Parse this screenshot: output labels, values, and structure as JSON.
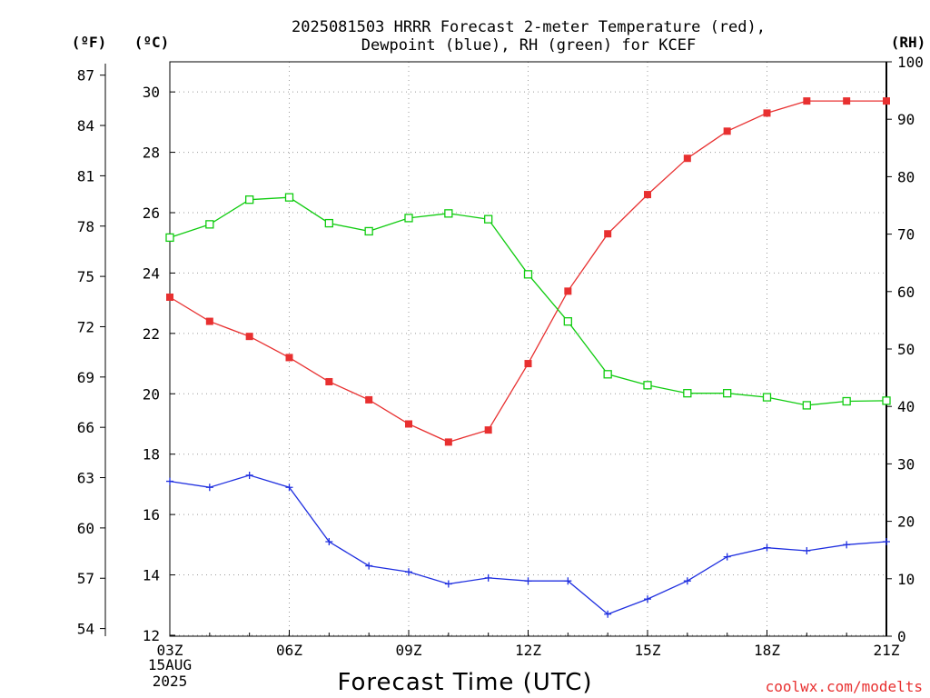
{
  "chart_data": {
    "type": "line",
    "title_line1": "2025081503 HRRR Forecast 2-meter Temperature (red),",
    "title_line2": "Dewpoint (blue), RH (green) for KCEF",
    "xlabel": "Forecast Time (UTC)",
    "date_label_line1": "15AUG",
    "date_label_line2": "2025",
    "credit": "coolwx.com/modelts",
    "units": {
      "fahrenheit": "(ºF)",
      "celsius": "(ºC)",
      "rh": "(RH)"
    },
    "x": [
      "03Z",
      "04Z",
      "05Z",
      "06Z",
      "07Z",
      "08Z",
      "09Z",
      "10Z",
      "11Z",
      "12Z",
      "13Z",
      "14Z",
      "15Z",
      "16Z",
      "17Z",
      "18Z",
      "19Z",
      "20Z",
      "21Z"
    ],
    "x_tick_labels": [
      "03Z",
      "06Z",
      "09Z",
      "12Z",
      "15Z",
      "18Z",
      "21Z"
    ],
    "celsius_ticks": [
      12,
      14,
      16,
      18,
      20,
      22,
      24,
      26,
      28,
      30
    ],
    "fahrenheit_ticks": [
      54,
      57,
      60,
      63,
      66,
      69,
      72,
      75,
      78,
      81,
      84,
      87
    ],
    "rh_ticks": [
      0,
      10,
      20,
      30,
      40,
      50,
      60,
      70,
      80,
      90,
      100
    ],
    "ylim_celsius": [
      11.969,
      30.998
    ],
    "ylim_rh": [
      0,
      100
    ],
    "grid": true,
    "series": [
      {
        "name": "2-meter Temperature",
        "axis": "celsius",
        "color": "#e83030",
        "marker": "filled-square",
        "values": [
          23.2,
          22.4,
          21.9,
          21.2,
          20.4,
          19.8,
          19.0,
          18.4,
          18.8,
          21.0,
          23.4,
          25.3,
          26.6,
          27.8,
          28.7,
          29.3,
          29.7,
          29.7,
          29.7
        ]
      },
      {
        "name": "Dewpoint",
        "axis": "celsius",
        "color": "#2030e0",
        "marker": "plus",
        "values": [
          17.1,
          16.9,
          17.3,
          16.9,
          15.1,
          14.3,
          14.1,
          13.7,
          13.9,
          13.8,
          13.8,
          12.7,
          13.2,
          13.8,
          14.6,
          14.9,
          14.8,
          15.0,
          15.1
        ]
      },
      {
        "name": "RH",
        "axis": "rh",
        "color": "#10cc10",
        "marker": "open-square",
        "values": [
          69.4,
          71.7,
          76.0,
          76.4,
          71.9,
          70.5,
          72.8,
          73.6,
          72.6,
          63.0,
          54.8,
          45.6,
          43.7,
          42.3,
          42.3,
          41.6,
          40.2,
          40.9,
          41.0
        ]
      }
    ]
  }
}
